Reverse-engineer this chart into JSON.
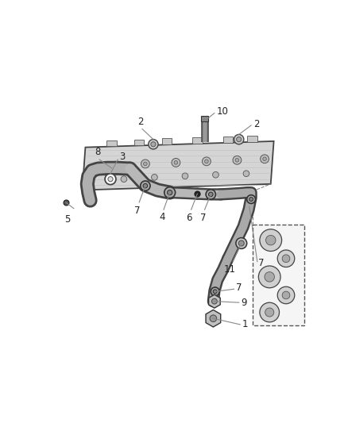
{
  "background_color": "#ffffff",
  "fig_width": 4.38,
  "fig_height": 5.33,
  "dpi": 100,
  "label_fontsize": 8.5,
  "label_color": "#222222",
  "leader_color": "#888888",
  "pipe_fill": "#b0b0b0",
  "pipe_edge": "#444444",
  "engine_fill": "#d8d8d8",
  "engine_edge": "#444444",
  "box_fill": "#eeeeee",
  "box_edge": "#555555"
}
